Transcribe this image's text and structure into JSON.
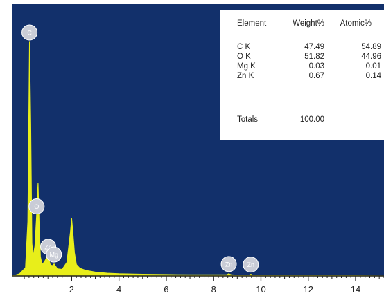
{
  "chart_data": {
    "type": "line",
    "title": "",
    "xlabel": "",
    "ylabel": "",
    "xlim": [
      -0.5,
      15.2
    ],
    "ylim": [
      0,
      1000
    ],
    "x_ticks": [
      2,
      4,
      6,
      8,
      10,
      12,
      14
    ],
    "series": [
      {
        "x": [
          -0.5,
          -0.2,
          0.05,
          0.15,
          0.22,
          0.27,
          0.32,
          0.37,
          0.45,
          0.52,
          0.58,
          0.63,
          0.68,
          0.75,
          0.85,
          1.0,
          1.1,
          1.2,
          1.26,
          1.32,
          1.4,
          1.6,
          1.8,
          1.95,
          2.0,
          2.05,
          2.12,
          2.2,
          2.35,
          2.6,
          3.0,
          3.5,
          4.0,
          5.0,
          6.0,
          7.0,
          8.0,
          8.55,
          8.64,
          8.75,
          9.0,
          9.5,
          9.57,
          9.65,
          10.0,
          12.0,
          14.0,
          15.2
        ],
        "values": [
          0,
          8,
          30,
          200,
          860,
          560,
          120,
          70,
          110,
          220,
          340,
          180,
          70,
          42,
          52,
          75,
          40,
          38,
          44,
          36,
          26,
          24,
          50,
          160,
          210,
          160,
          85,
          42,
          28,
          20,
          14,
          10,
          8,
          6,
          5,
          4,
          4,
          4,
          8,
          4,
          3,
          3,
          6,
          3,
          2,
          2,
          1,
          0
        ]
      }
    ],
    "peak_labels": [
      {
        "text": "C",
        "x": 0.22
      },
      {
        "text": "O",
        "x": 0.52
      },
      {
        "text": "Zn",
        "x": 1.01
      },
      {
        "text": "Mg",
        "x": 1.25
      },
      {
        "text": "Zn",
        "x": 8.64
      },
      {
        "text": "Zn",
        "x": 9.57
      }
    ],
    "table": {
      "headers": [
        "Element",
        "Weight%",
        "Atomic%"
      ],
      "rows": [
        [
          "C K",
          "47.49",
          "54.89"
        ],
        [
          "O K",
          "51.82",
          "44.96"
        ],
        [
          "Mg K",
          "0.03",
          "0.01"
        ],
        [
          "Zn K",
          "0.67",
          "0.14"
        ]
      ],
      "totals_label": "Totals",
      "totals_value": "100.00"
    }
  },
  "colors": {
    "background": "#12306b",
    "spectrum": "#e8ee1a",
    "peak_marker": "#c9ccd6",
    "axis": "#222222"
  }
}
